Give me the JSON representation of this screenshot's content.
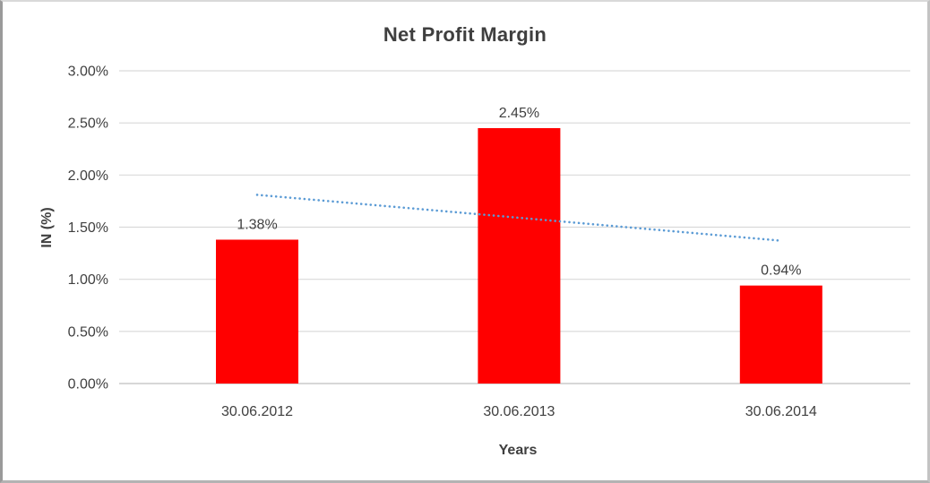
{
  "window": {
    "background": "#ffffff",
    "border_color": "#b0b0b0"
  },
  "chart_data": {
    "type": "bar",
    "title": "Net Profit Margin",
    "categories": [
      "30.06.2012",
      "30.06.2013",
      "30.06.2014"
    ],
    "values": [
      1.38,
      2.45,
      0.94
    ],
    "value_labels": [
      "1.38%",
      "2.45%",
      "0.94%"
    ],
    "xlabel": "Years",
    "ylabel": "IN (%)",
    "ylim": [
      0,
      3
    ],
    "y_ticks": [
      "0.00%",
      "0.50%",
      "1.00%",
      "1.50%",
      "2.00%",
      "2.50%",
      "3.00%"
    ],
    "grid": true,
    "legend": "none",
    "bar_color": "#ff0000",
    "gridline_color": "#d9d9d9",
    "axis_line_color": "#bfbfbf",
    "text_color": "#404040",
    "trendline": {
      "type": "linear",
      "style": "dotted",
      "color": "#5b9bd5",
      "start_value": 1.81,
      "end_value": 1.37
    }
  }
}
